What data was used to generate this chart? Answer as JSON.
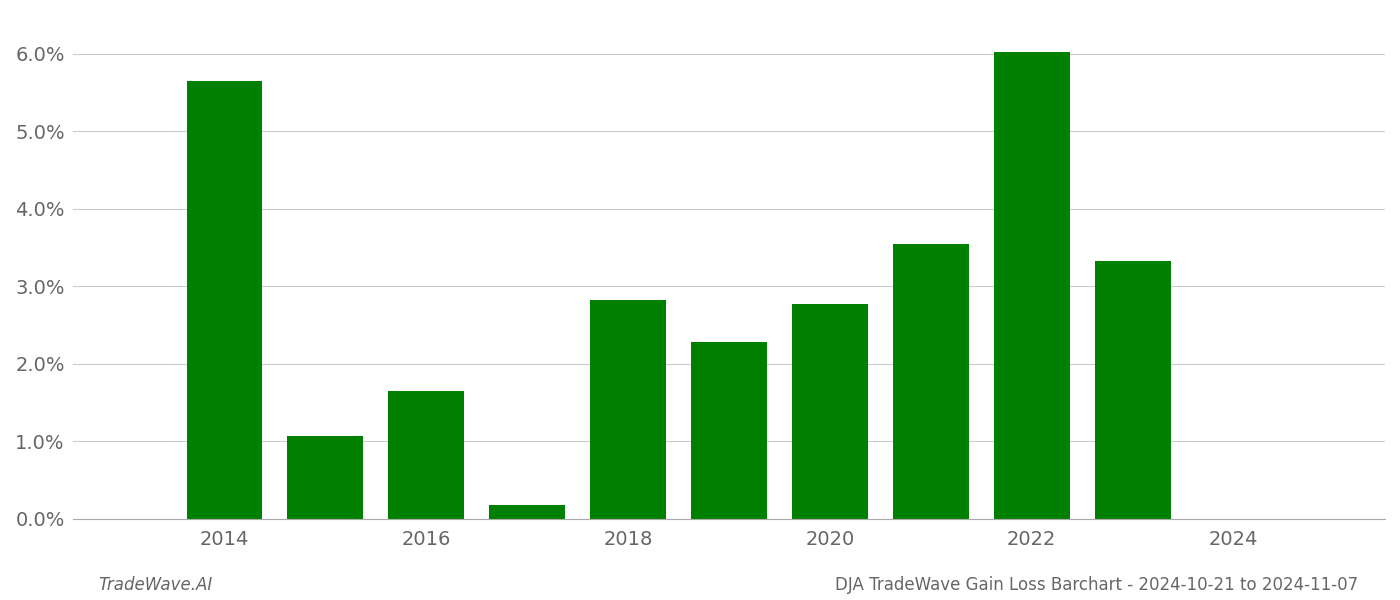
{
  "years": [
    2014,
    2015,
    2016,
    2017,
    2018,
    2019,
    2020,
    2021,
    2022,
    2023,
    2024
  ],
  "values": [
    0.0565,
    0.0107,
    0.0165,
    0.0018,
    0.0283,
    0.0228,
    0.0277,
    0.0355,
    0.0602,
    0.0333,
    0.0
  ],
  "bar_color": "#008000",
  "footer_left": "TradeWave.AI",
  "footer_right": "DJA TradeWave Gain Loss Barchart - 2024-10-21 to 2024-11-07",
  "ylim": [
    0,
    0.065
  ],
  "yticks": [
    0.0,
    0.01,
    0.02,
    0.03,
    0.04,
    0.05,
    0.06
  ],
  "ytick_labels": [
    "0.0%",
    "1.0%",
    "2.0%",
    "3.0%",
    "4.0%",
    "5.0%",
    "6.0%"
  ],
  "xlim": [
    2012.5,
    2025.5
  ],
  "xticks": [
    2014,
    2016,
    2018,
    2020,
    2022,
    2024
  ],
  "background_color": "#ffffff",
  "grid_color": "#cccccc",
  "bar_width": 0.75,
  "figsize": [
    14.0,
    6.0
  ],
  "dpi": 100,
  "tick_fontsize": 14,
  "footer_fontsize": 12
}
